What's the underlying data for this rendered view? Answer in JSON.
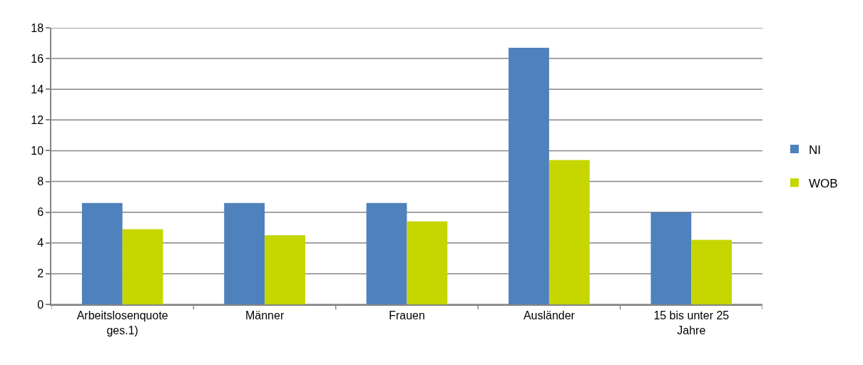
{
  "chart_data": {
    "type": "bar",
    "categories": [
      "Arbeitslosenquote ges.1)",
      "Männer",
      "Frauen",
      "Ausländer",
      "15 bis unter 25 Jahre"
    ],
    "series": [
      {
        "name": "NI",
        "color": "#4f81bd",
        "values": [
          6.6,
          6.6,
          6.6,
          16.7,
          6.0
        ]
      },
      {
        "name": "WOB",
        "color": "#c5d600",
        "values": [
          4.9,
          4.5,
          5.4,
          9.4,
          4.2
        ]
      }
    ],
    "ylim": [
      0,
      18
    ],
    "yticks": [
      0,
      2,
      4,
      6,
      8,
      10,
      12,
      14,
      16,
      18
    ],
    "grid": "y",
    "legend": "right"
  }
}
